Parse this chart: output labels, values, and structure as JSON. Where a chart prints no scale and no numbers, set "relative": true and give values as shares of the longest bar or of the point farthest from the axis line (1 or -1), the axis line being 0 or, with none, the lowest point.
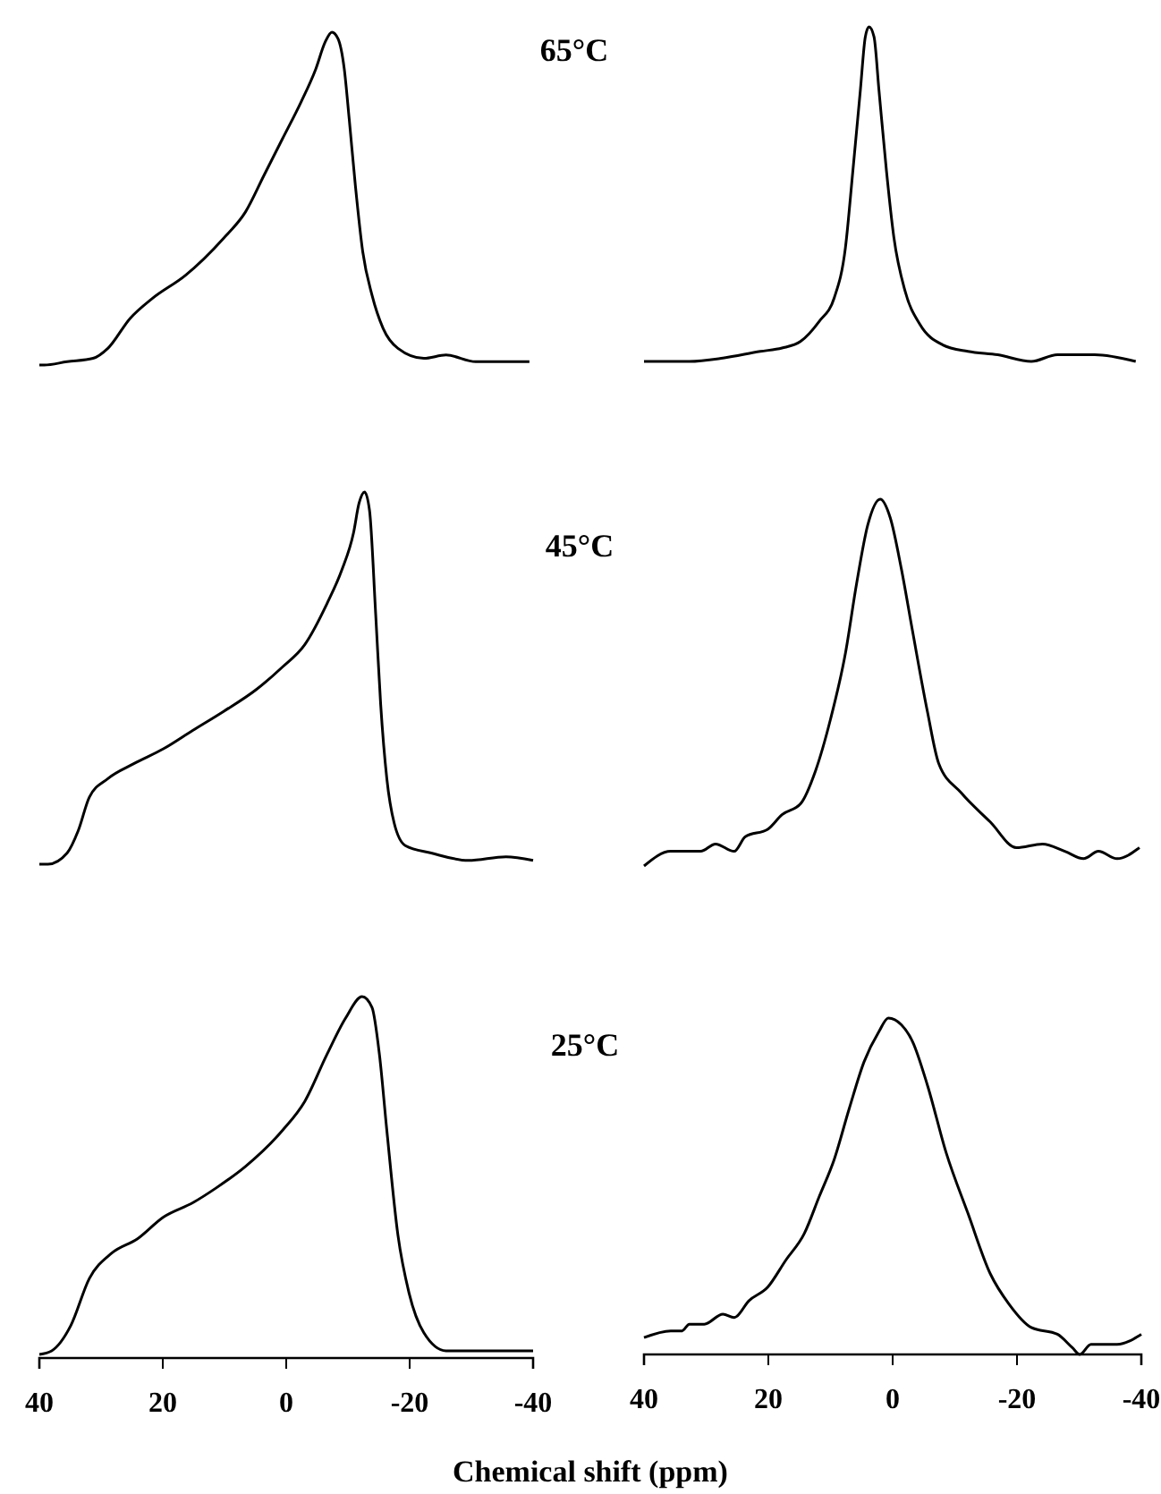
{
  "chart_data": [
    {
      "type": "line",
      "title": "65°C",
      "relative": true,
      "xlim": [
        40,
        -40
      ],
      "color": "#000000",
      "x": [
        40,
        39.2,
        35.5,
        31.3,
        28.9,
        25.3,
        21.7,
        16.3,
        10.2,
        6.6,
        3.6,
        0.6,
        -2.4,
        -4.8,
        -6.3,
        -7.4,
        -8.4,
        -9.4,
        -10.2,
        -11.2,
        -12.4,
        -13.9,
        -15.7,
        -18.1,
        -22.3,
        -25.9,
        -30.7,
        -35.6,
        -39.4
      ],
      "values": [
        0,
        0,
        0.01,
        0.02,
        0.05,
        0.14,
        0.2,
        0.27,
        0.38,
        0.46,
        0.57,
        0.68,
        0.79,
        0.89,
        0.97,
        1,
        0.98,
        0.89,
        0.74,
        0.54,
        0.34,
        0.21,
        0.11,
        0.05,
        0.02,
        0.03,
        0.01,
        0.01,
        0.01
      ]
    },
    {
      "type": "line",
      "relative": true,
      "xlim": [
        40,
        -40
      ],
      "color": "#000000",
      "x": [
        40,
        35.7,
        32.7,
        27.3,
        21.3,
        17.8,
        14.8,
        11.8,
        9.4,
        7.6,
        6.4,
        5.2,
        4.4,
        3.8,
        3.0,
        2.2,
        1.0,
        -0.2,
        -2.0,
        -4.4,
        -8.0,
        -12.1,
        -16.9,
        -22.3,
        -26.5,
        -32.5,
        -39.1
      ],
      "values": [
        0,
        0,
        0,
        0.01,
        0.03,
        0.04,
        0.06,
        0.12,
        0.19,
        0.34,
        0.57,
        0.81,
        0.97,
        1,
        0.97,
        0.81,
        0.57,
        0.37,
        0.21,
        0.11,
        0.05,
        0.03,
        0.02,
        0,
        0.02,
        0.02,
        0
      ]
    },
    {
      "type": "line",
      "title": "45°C",
      "relative": true,
      "xlim": [
        40,
        -40
      ],
      "color": "#000000",
      "x": [
        40,
        38.6,
        35.5,
        33.7,
        31.9,
        28.9,
        24.7,
        19.9,
        15.1,
        10.2,
        4.8,
        0.6,
        -3.0,
        -6.6,
        -9.0,
        -10.9,
        -11.8,
        -12.7,
        -13.5,
        -14.5,
        -15.3,
        -16.3,
        -17.5,
        -19.3,
        -23.5,
        -29.5,
        -35.6,
        -40
      ],
      "values": [
        0,
        0,
        0.03,
        0.09,
        0.18,
        0.23,
        0.27,
        0.31,
        0.36,
        0.41,
        0.47,
        0.53,
        0.59,
        0.7,
        0.79,
        0.89,
        0.97,
        1,
        0.95,
        0.67,
        0.43,
        0.23,
        0.11,
        0.05,
        0.03,
        0.01,
        0.02,
        0.01
      ]
    },
    {
      "type": "line",
      "relative": true,
      "xlim": [
        40,
        -40
      ],
      "color": "#000000",
      "x": [
        40,
        35.7,
        30.9,
        28.5,
        25.5,
        23.7,
        20.1,
        17.8,
        14.8,
        12.4,
        10.0,
        7.6,
        5.8,
        4.0,
        2.0,
        0.4,
        -1.4,
        -3.2,
        -5.6,
        -7.4,
        -11.0,
        -15.7,
        -19.9,
        -24.1,
        -27.7,
        -30.7,
        -33.1,
        -36.1,
        -39.7
      ],
      "values": [
        0,
        0.04,
        0.04,
        0.06,
        0.04,
        0.08,
        0.1,
        0.14,
        0.17,
        0.26,
        0.4,
        0.58,
        0.77,
        0.93,
        1,
        0.95,
        0.81,
        0.64,
        0.42,
        0.28,
        0.2,
        0.12,
        0.05,
        0.06,
        0.04,
        0.02,
        0.04,
        0.02,
        0.05
      ]
    },
    {
      "type": "line",
      "title": "25°C",
      "relative": true,
      "xlim": [
        40,
        -40
      ],
      "xticks": [
        40,
        20,
        0,
        -20,
        -40
      ],
      "color": "#000000",
      "xlabel": "Chemical shift (ppm)",
      "x": [
        40,
        38.0,
        34.9,
        31.9,
        28.3,
        24.1,
        19.9,
        15.1,
        11.4,
        6.6,
        0.6,
        -3.0,
        -6.6,
        -9.6,
        -12.3,
        -13.9,
        -15.1,
        -16.3,
        -18.1,
        -19.9,
        -22.3,
        -25.9,
        -31.9,
        -40
      ],
      "values": [
        0.01,
        0.02,
        0.09,
        0.22,
        0.29,
        0.33,
        0.39,
        0.43,
        0.47,
        0.53,
        0.63,
        0.71,
        0.84,
        0.94,
        1,
        0.97,
        0.84,
        0.63,
        0.34,
        0.18,
        0.07,
        0.02,
        0.02,
        0.02
      ]
    },
    {
      "type": "line",
      "relative": true,
      "xlim": [
        40,
        -40
      ],
      "xticks": [
        40,
        20,
        0,
        -20,
        -40
      ],
      "color": "#000000",
      "x": [
        40,
        35.7,
        33.9,
        32.7,
        30.3,
        27.3,
        25.5,
        23.1,
        20.1,
        17.2,
        14.2,
        11.8,
        9.4,
        7.0,
        4.6,
        2.2,
        0.7,
        -1.4,
        -3.2,
        -5.6,
        -8.6,
        -12.1,
        -15.7,
        -18.7,
        -22.3,
        -26.5,
        -28.9,
        -30.1,
        -31.9,
        -36.1,
        -40
      ],
      "values": [
        0.05,
        0.07,
        0.07,
        0.09,
        0.09,
        0.12,
        0.11,
        0.16,
        0.2,
        0.28,
        0.36,
        0.47,
        0.58,
        0.73,
        0.87,
        0.96,
        1,
        0.98,
        0.93,
        0.8,
        0.6,
        0.42,
        0.24,
        0.15,
        0.08,
        0.06,
        0.02,
        0,
        0.03,
        0.03,
        0.06
      ]
    }
  ]
}
